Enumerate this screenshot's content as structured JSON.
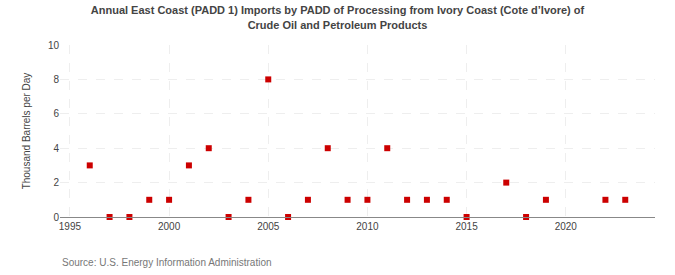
{
  "chart_data": {
    "type": "scatter",
    "title": "Annual East Coast (PADD 1) Imports by PADD of Processing from Ivory Coast (Cote d’Ivore) of\nCrude Oil and Petroleum Products",
    "ylabel": "Thousand Barrels per Day",
    "annotations": [
      "Source: U.S. Energy Information Administration"
    ],
    "x": [
      1996,
      1997,
      1998,
      1999,
      2000,
      2001,
      2002,
      2003,
      2004,
      2005,
      2006,
      2007,
      2008,
      2009,
      2010,
      2011,
      2012,
      2013,
      2014,
      2015,
      2017,
      2018,
      2019,
      2022,
      2023
    ],
    "values": [
      3,
      0,
      0,
      1,
      1,
      3,
      4,
      0,
      1,
      8,
      0,
      1,
      4,
      1,
      1,
      4,
      1,
      1,
      1,
      0,
      2,
      0,
      1,
      1,
      1
    ],
    "color": "#cc0000",
    "marker": "square",
    "xlim": [
      1994.5,
      2024.5
    ],
    "ylim": [
      0,
      10
    ],
    "xticks": [
      1995,
      2000,
      2005,
      2010,
      2015,
      2020
    ],
    "yticks": [
      0,
      2,
      4,
      6,
      8,
      10
    ],
    "grid": true
  }
}
